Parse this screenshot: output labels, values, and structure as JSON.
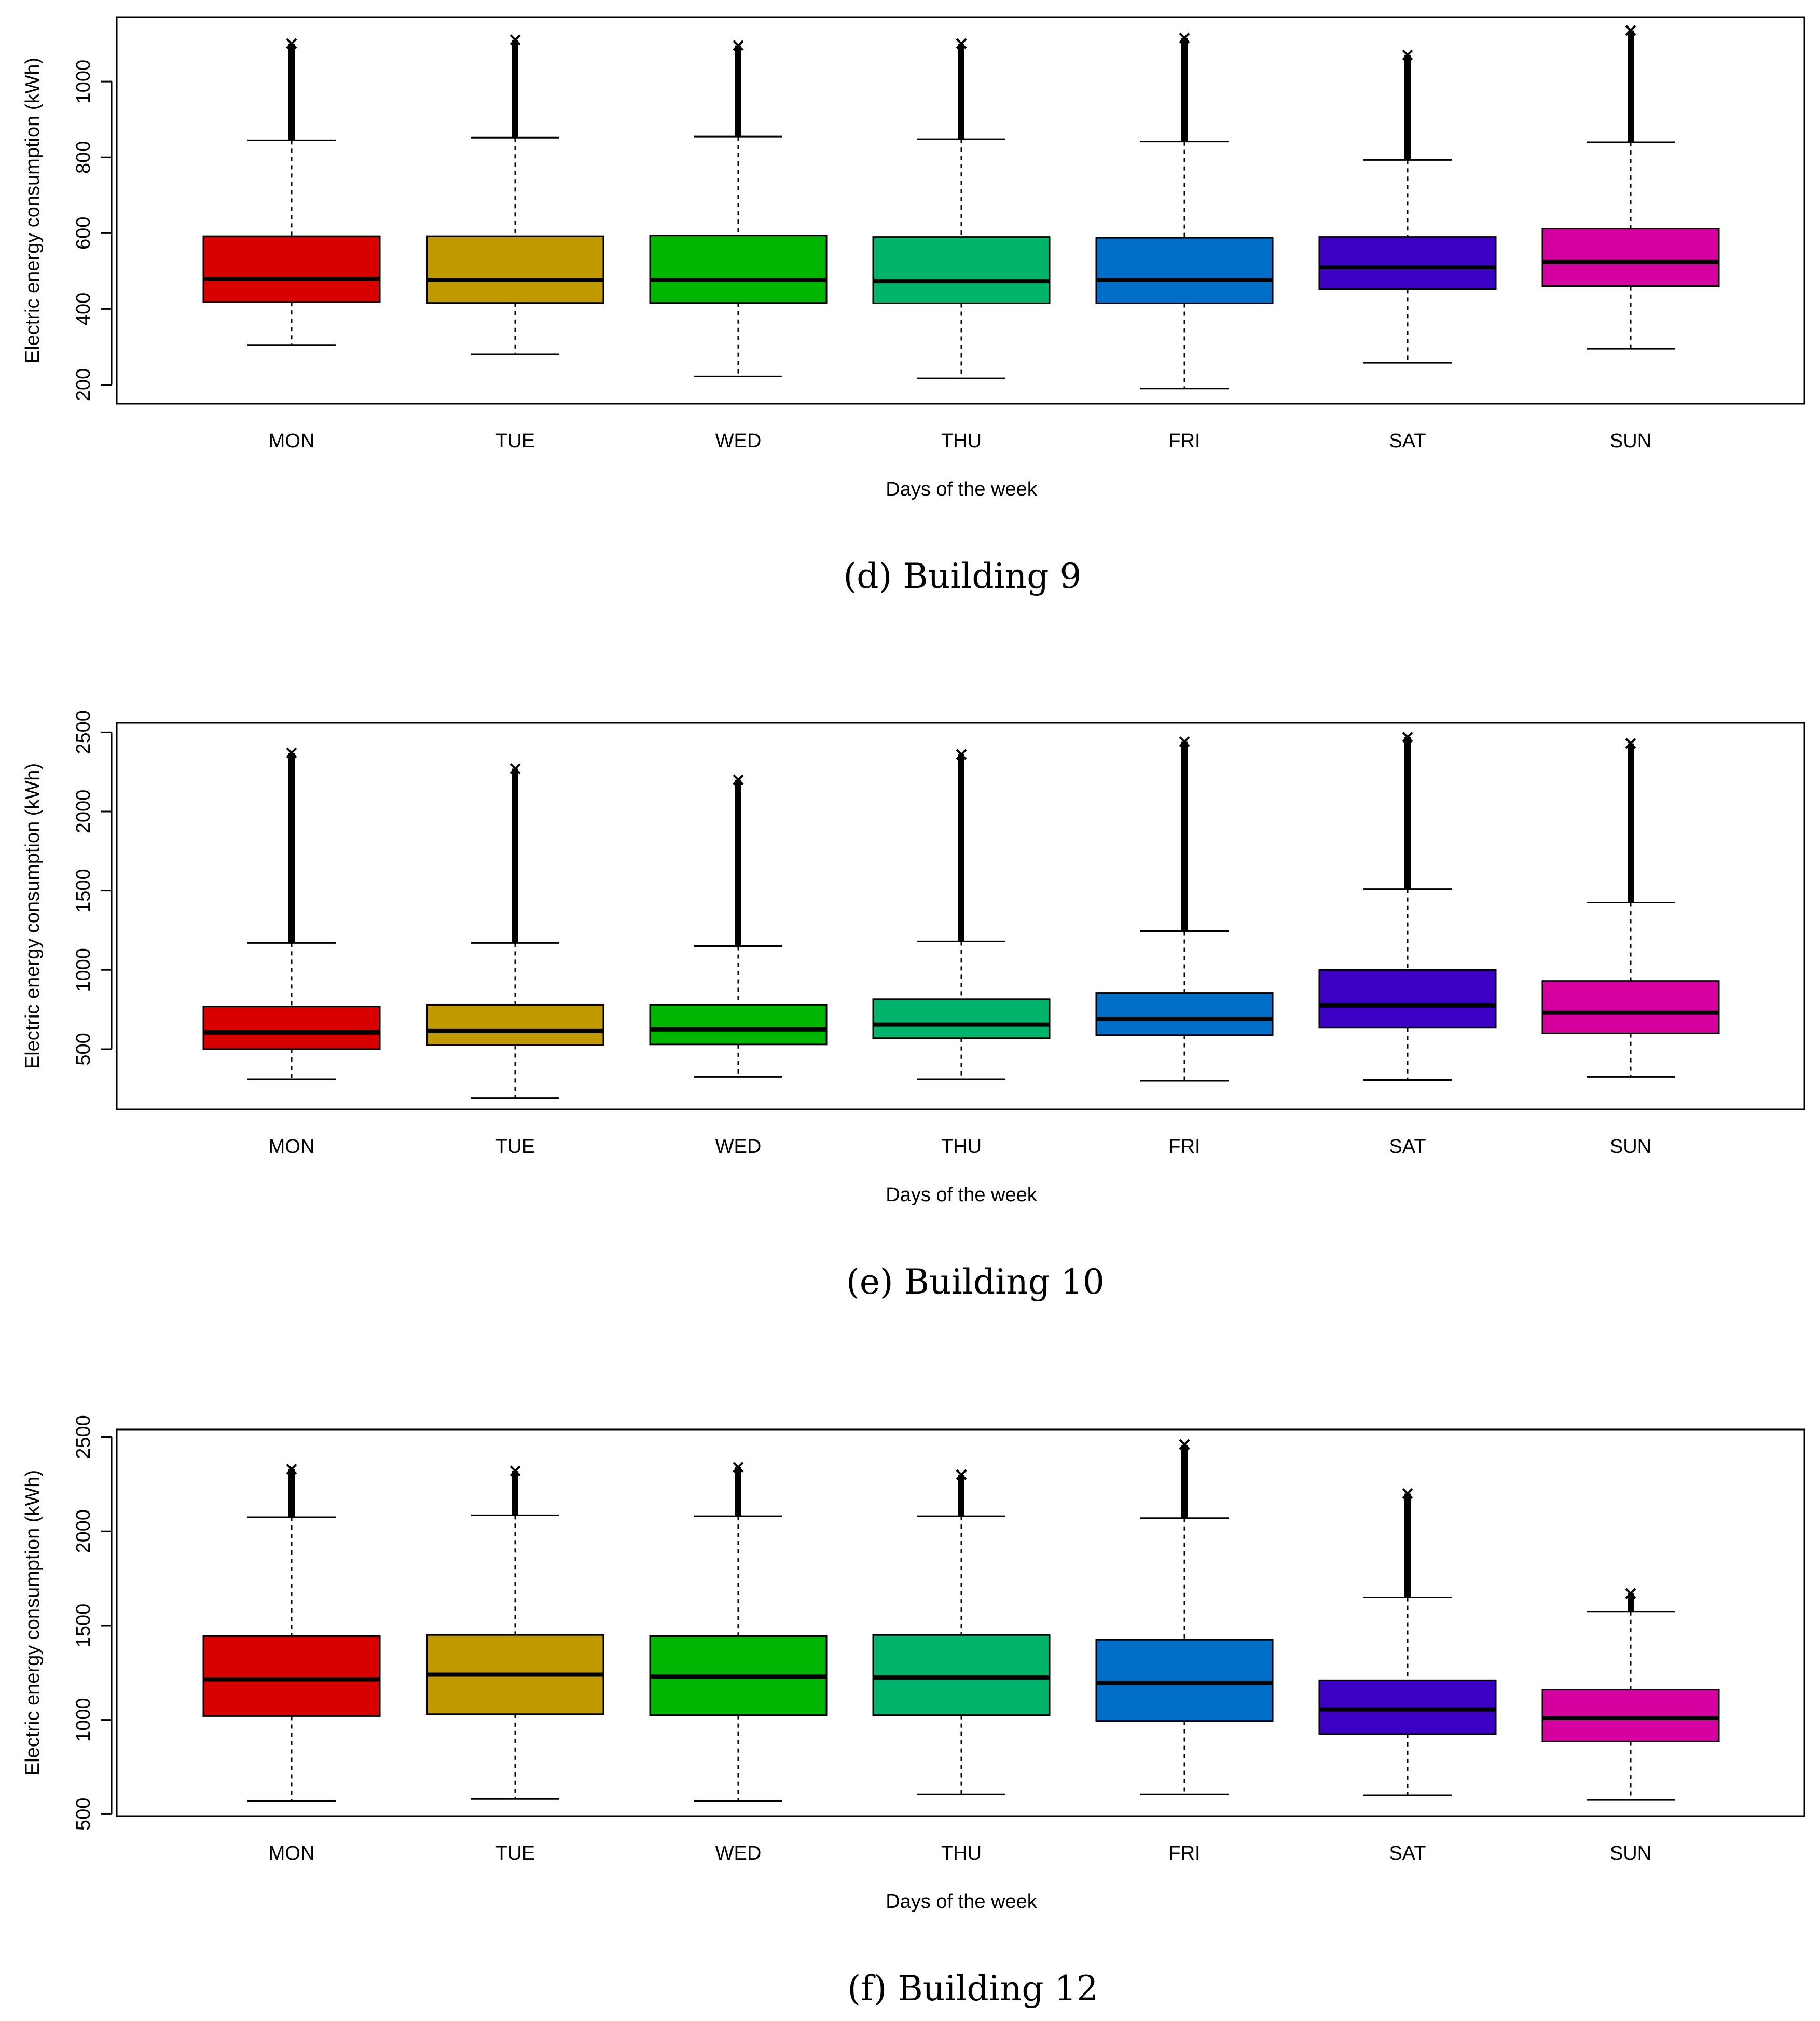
{
  "chart_data": [
    {
      "type": "boxplot",
      "caption": "(d) Building 9",
      "xlabel": "Days of the week",
      "ylabel": "Electric energy consumption (kWh)",
      "categories": [
        "MON",
        "TUE",
        "WED",
        "THU",
        "FRI",
        "SAT",
        "SUN"
      ],
      "ylim": [
        150,
        1170
      ],
      "yticks": [
        200,
        400,
        600,
        800,
        1000
      ],
      "boxes": [
        {
          "whisker_low": 305,
          "q1": 418,
          "median": 480,
          "q3": 592,
          "whisker_high": 845,
          "outlier_max": 1100
        },
        {
          "whisker_low": 280,
          "q1": 416,
          "median": 476,
          "q3": 592,
          "whisker_high": 852,
          "outlier_max": 1110
        },
        {
          "whisker_low": 222,
          "q1": 416,
          "median": 476,
          "q3": 594,
          "whisker_high": 855,
          "outlier_max": 1095
        },
        {
          "whisker_low": 217,
          "q1": 415,
          "median": 473,
          "q3": 590,
          "whisker_high": 848,
          "outlier_max": 1100
        },
        {
          "whisker_low": 190,
          "q1": 415,
          "median": 477,
          "q3": 588,
          "whisker_high": 842,
          "outlier_max": 1115
        },
        {
          "whisker_low": 258,
          "q1": 452,
          "median": 510,
          "q3": 590,
          "whisker_high": 793,
          "outlier_max": 1070
        },
        {
          "whisker_low": 295,
          "q1": 460,
          "median": 524,
          "q3": 612,
          "whisker_high": 840,
          "outlier_max": 1135
        }
      ]
    },
    {
      "type": "boxplot",
      "caption": "(e) Building 10",
      "xlabel": "Days of the week",
      "ylabel": "Electric energy consumption (kWh)",
      "categories": [
        "MON",
        "TUE",
        "WED",
        "THU",
        "FRI",
        "SAT",
        "SUN"
      ],
      "ylim": [
        120,
        2560
      ],
      "yticks": [
        500,
        1000,
        1500,
        2000,
        2500
      ],
      "boxes": [
        {
          "whisker_low": 310,
          "q1": 500,
          "median": 605,
          "q3": 770,
          "whisker_high": 1170,
          "outlier_max": 2370
        },
        {
          "whisker_low": 190,
          "q1": 525,
          "median": 615,
          "q3": 780,
          "whisker_high": 1170,
          "outlier_max": 2270
        },
        {
          "whisker_low": 325,
          "q1": 530,
          "median": 625,
          "q3": 780,
          "whisker_high": 1150,
          "outlier_max": 2200
        },
        {
          "whisker_low": 310,
          "q1": 570,
          "median": 655,
          "q3": 815,
          "whisker_high": 1180,
          "outlier_max": 2360
        },
        {
          "whisker_low": 300,
          "q1": 590,
          "median": 690,
          "q3": 855,
          "whisker_high": 1245,
          "outlier_max": 2440
        },
        {
          "whisker_low": 305,
          "q1": 635,
          "median": 775,
          "q3": 1000,
          "whisker_high": 1510,
          "outlier_max": 2470
        },
        {
          "whisker_low": 325,
          "q1": 600,
          "median": 730,
          "q3": 930,
          "whisker_high": 1425,
          "outlier_max": 2430
        }
      ]
    },
    {
      "type": "boxplot",
      "caption": "(f) Building 12",
      "xlabel": "Days of the week",
      "ylabel": "Electric energy consumption (kWh)",
      "categories": [
        "MON",
        "TUE",
        "WED",
        "THU",
        "FRI",
        "SAT",
        "SUN"
      ],
      "ylim": [
        490,
        2540
      ],
      "yticks": [
        500,
        1000,
        1500,
        2000,
        2500
      ],
      "boxes": [
        {
          "whisker_low": 570,
          "q1": 1020,
          "median": 1215,
          "q3": 1445,
          "whisker_high": 2075,
          "outlier_max": 2330
        },
        {
          "whisker_low": 580,
          "q1": 1030,
          "median": 1240,
          "q3": 1450,
          "whisker_high": 2085,
          "outlier_max": 2320
        },
        {
          "whisker_low": 570,
          "q1": 1025,
          "median": 1230,
          "q3": 1445,
          "whisker_high": 2080,
          "outlier_max": 2340
        },
        {
          "whisker_low": 605,
          "q1": 1025,
          "median": 1225,
          "q3": 1450,
          "whisker_high": 2080,
          "outlier_max": 2300
        },
        {
          "whisker_low": 605,
          "q1": 995,
          "median": 1195,
          "q3": 1425,
          "whisker_high": 2070,
          "outlier_max": 2460
        },
        {
          "whisker_low": 600,
          "q1": 925,
          "median": 1055,
          "q3": 1210,
          "whisker_high": 1650,
          "outlier_max": 2200
        },
        {
          "whisker_low": 575,
          "q1": 885,
          "median": 1010,
          "q3": 1160,
          "whisker_high": 1575,
          "outlier_max": 1670
        }
      ]
    }
  ],
  "colors": {
    "MON": "#d90000",
    "TUE": "#c19a00",
    "WED": "#00b600",
    "THU": "#00b56b",
    "FRI": "#006ec7",
    "SAT": "#3b00c4",
    "SUN": "#d600a0"
  }
}
